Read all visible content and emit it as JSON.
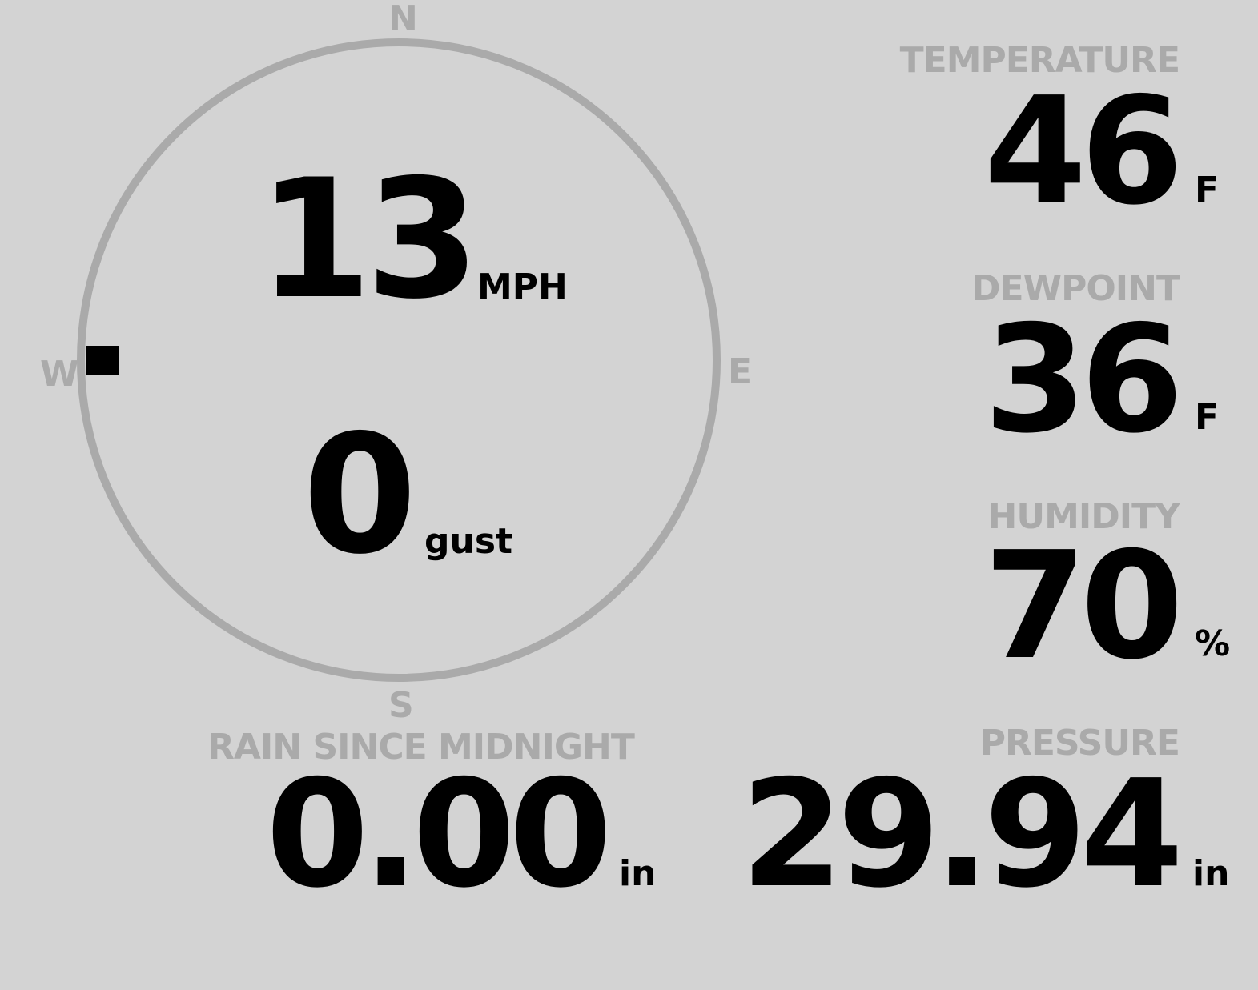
{
  "colors": {
    "background": "#d3d3d3",
    "muted": "#aaaaaa",
    "value": "#000000"
  },
  "wind": {
    "compass": {
      "n": "N",
      "e": "E",
      "s": "S",
      "w": "W"
    },
    "direction_deg": 270,
    "speed": "13",
    "speed_unit": "MPH",
    "gust": "0",
    "gust_unit": "gust"
  },
  "temperature": {
    "label": "TEMPERATURE",
    "value": "46",
    "unit": "F"
  },
  "dewpoint": {
    "label": "DEWPOINT",
    "value": "36",
    "unit": "F"
  },
  "humidity": {
    "label": "HUMIDITY",
    "value": "70",
    "unit": "%"
  },
  "pressure": {
    "label": "PRESSURE",
    "value": "29.94",
    "unit": "in"
  },
  "rain": {
    "label": "RAIN SINCE MIDNIGHT",
    "value": "0.00",
    "unit": "in"
  }
}
